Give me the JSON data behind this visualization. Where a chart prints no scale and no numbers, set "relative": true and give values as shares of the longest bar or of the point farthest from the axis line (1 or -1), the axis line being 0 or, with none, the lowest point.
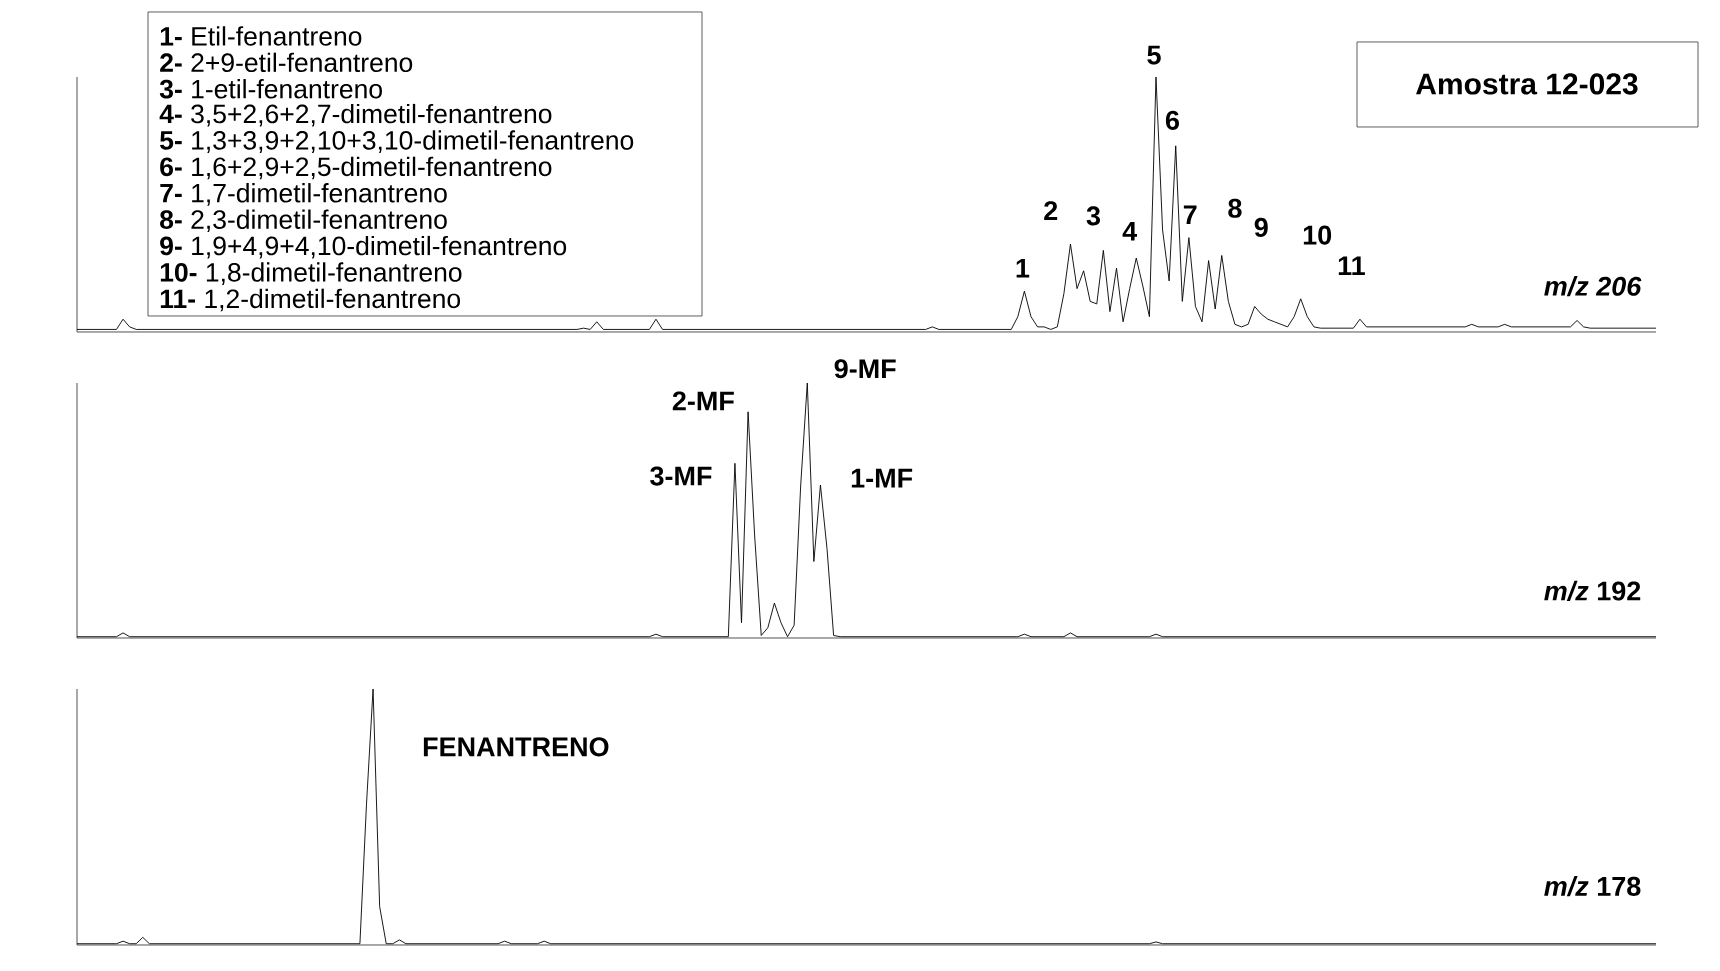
{
  "chart_data": [
    {
      "type": "line",
      "title": "Amostra 12-023",
      "relative": true,
      "annotations": [
        "**1-** Etil-fenantreno",
        "**2-** 2+9-etil-fenantreno",
        "**3-** 1-etil-fenantreno",
        "**4-** 3,5+2,6+2,7-dimetil-fenantreno",
        "**5-** 1,3+3,9+2,10+3,10-dimetil-fenantreno",
        "**6-** 1,6+2,9+2,5-dimetil-fenantreno",
        "**7-** 1,7-dimetil-fenantreno",
        "**8-** 2,3-dimetil-fenantreno",
        "**9-** 1,9+4,9+4,10-dimetil-fenantreno",
        "**10-** 1,8-dimetil-fenantreno",
        "**11-** 1,2-dimetil-fenantreno",
        "1",
        "2",
        "3",
        "4",
        "5",
        "6",
        "7",
        "8",
        "9",
        "10",
        "11"
      ],
      "categories": [
        null,
        null,
        null,
        null,
        null,
        null,
        null,
        null,
        null,
        null,
        null,
        null,
        null,
        null,
        null,
        null,
        null,
        null,
        null,
        null,
        null,
        null,
        null,
        null,
        null,
        null,
        null,
        null,
        null,
        null,
        null,
        null,
        null,
        null,
        null,
        null,
        null,
        null,
        null,
        null,
        null,
        null,
        null,
        null,
        null,
        null,
        null,
        null,
        null,
        null,
        null,
        null,
        null,
        null,
        null,
        null,
        null,
        null,
        null,
        null,
        null,
        null,
        null,
        null,
        null,
        null,
        null,
        null,
        null,
        null,
        null,
        null,
        null,
        null,
        null,
        null,
        null,
        null,
        null,
        null,
        null,
        null,
        null,
        null,
        null,
        null,
        null,
        null,
        null,
        null,
        null,
        null,
        null,
        null,
        null,
        null,
        null,
        null,
        null,
        null,
        null,
        null,
        null,
        null,
        null,
        null,
        null,
        null,
        null,
        null,
        null,
        null,
        null,
        null,
        null,
        null,
        null,
        null,
        null,
        null,
        null,
        null,
        null,
        null,
        null,
        null,
        null,
        null,
        null,
        null,
        null,
        null,
        null,
        null,
        null,
        null,
        null,
        null,
        null,
        null,
        null,
        null,
        null,
        null,
        null,
        null,
        null,
        null,
        null,
        null,
        null,
        null,
        null,
        null,
        null,
        null,
        null,
        null,
        null,
        null,
        null,
        null,
        null,
        null,
        null,
        null,
        null,
        null,
        null,
        null,
        null,
        null,
        null,
        null,
        null,
        null,
        null,
        null,
        null,
        null,
        null,
        null,
        null,
        null,
        null,
        null,
        null,
        null,
        null,
        null,
        null,
        null,
        null,
        null,
        null,
        null,
        null,
        null,
        null,
        null,
        null,
        null,
        null,
        null,
        null,
        null,
        null,
        null,
        null,
        null,
        null,
        null,
        null,
        null,
        null,
        null,
        null,
        null,
        null,
        null,
        null,
        null,
        null,
        null,
        null,
        null,
        null,
        null,
        null,
        null,
        null,
        null,
        null,
        null,
        null,
        null,
        null,
        null,
        null,
        null,
        null
      ],
      "series": [
        {
          "name": "m/z 206",
          "color": "#000000",
          "values": [
            0.01,
            0.01,
            0.01,
            0.01,
            0.01,
            0.01,
            0.01,
            0.05,
            0.02,
            0.01,
            0.01,
            0.01,
            0.01,
            0.01,
            0.01,
            0.01,
            0.01,
            0.01,
            0.01,
            0.01,
            0.01,
            0.01,
            0.01,
            0.01,
            0.01,
            0.01,
            0.01,
            0.01,
            0.01,
            0.01,
            0.01,
            0.01,
            0.01,
            0.01,
            0.01,
            0.01,
            0.01,
            0.01,
            0.01,
            0.01,
            0.01,
            0.01,
            0.01,
            0.01,
            0.01,
            0.01,
            0.01,
            0.01,
            0.01,
            0.01,
            0.01,
            0.01,
            0.01,
            0.01,
            0.01,
            0.01,
            0.01,
            0.01,
            0.01,
            0.01,
            0.01,
            0.01,
            0.01,
            0.01,
            0.01,
            0.01,
            0.01,
            0.01,
            0.01,
            0.01,
            0.01,
            0.01,
            0.01,
            0.01,
            0.01,
            0.01,
            0.01,
            0.015,
            0.01,
            0.04,
            0.01,
            0.01,
            0.01,
            0.01,
            0.01,
            0.01,
            0.01,
            0.01,
            0.05,
            0.01,
            0.01,
            0.01,
            0.01,
            0.01,
            0.01,
            0.01,
            0.01,
            0.01,
            0.01,
            0.01,
            0.01,
            0.01,
            0.01,
            0.01,
            0.01,
            0.01,
            0.01,
            0.01,
            0.01,
            0.01,
            0.01,
            0.01,
            0.01,
            0.01,
            0.01,
            0.01,
            0.01,
            0.01,
            0.01,
            0.01,
            0.01,
            0.01,
            0.01,
            0.01,
            0.01,
            0.01,
            0.01,
            0.01,
            0.01,
            0.01,
            0.02,
            0.01,
            0.01,
            0.01,
            0.01,
            0.01,
            0.01,
            0.01,
            0.01,
            0.01,
            0.01,
            0.01,
            0.01,
            0.06,
            0.16,
            0.06,
            0.02,
            0.02,
            0.01,
            0.02,
            0.15,
            0.345,
            0.17,
            0.24,
            0.12,
            0.11,
            0.32,
            0.08,
            0.25,
            0.04,
            0.17,
            0.29,
            0.18,
            0.06,
            1.0,
            0.4,
            0.2,
            0.73,
            0.12,
            0.37,
            0.1,
            0.04,
            0.28,
            0.09,
            0.3,
            0.12,
            0.03,
            0.02,
            0.03,
            0.1,
            0.07,
            0.05,
            0.04,
            0.03,
            0.02,
            0.06,
            0.13,
            0.06,
            0.02,
            0.015,
            0.015,
            0.015,
            0.015,
            0.015,
            0.015,
            0.05,
            0.02,
            0.02,
            0.02,
            0.02,
            0.02,
            0.02,
            0.02,
            0.02,
            0.02,
            0.02,
            0.02,
            0.02,
            0.02,
            0.02,
            0.02,
            0.02,
            0.03,
            0.02,
            0.02,
            0.02,
            0.02,
            0.03,
            0.02,
            0.02,
            0.02,
            0.02,
            0.02,
            0.02,
            0.02,
            0.02,
            0.02,
            0.02,
            0.045,
            0.02,
            0.015,
            0.015,
            0.015,
            0.015,
            0.015,
            0.015,
            0.015,
            0.015,
            0.015,
            0.015,
            0.015
          ]
        }
      ]
    },
    {
      "type": "line",
      "relative": true,
      "annotations": [
        "3-MF",
        "2-MF",
        "9-MF",
        "1-MF"
      ],
      "categories": [
        null,
        null,
        null,
        null,
        null,
        null,
        null,
        null,
        null,
        null,
        null,
        null,
        null,
        null,
        null,
        null,
        null,
        null,
        null,
        null,
        null,
        null,
        null,
        null,
        null,
        null,
        null,
        null,
        null,
        null,
        null,
        null,
        null,
        null,
        null,
        null,
        null,
        null,
        null,
        null,
        null,
        null,
        null,
        null,
        null,
        null,
        null,
        null,
        null,
        null,
        null,
        null,
        null,
        null,
        null,
        null,
        null,
        null,
        null,
        null,
        null,
        null,
        null,
        null,
        null,
        null,
        null,
        null,
        null,
        null,
        null,
        null,
        null,
        null,
        null,
        null,
        null,
        null,
        null,
        null,
        null,
        null,
        null,
        null,
        null,
        null,
        null,
        null,
        null,
        null,
        null,
        null,
        null,
        null,
        null,
        null,
        null,
        null,
        null,
        null,
        null,
        null,
        null,
        null,
        null,
        null,
        null,
        null,
        null,
        null,
        null,
        null,
        null,
        null,
        null,
        null,
        null,
        null,
        null,
        null,
        null,
        null,
        null,
        null,
        null,
        null,
        null,
        null,
        null,
        null,
        null,
        null,
        null,
        null,
        null,
        null,
        null,
        null,
        null,
        null,
        null,
        null,
        null,
        null,
        null,
        null,
        null,
        null,
        null,
        null,
        null,
        null,
        null,
        null,
        null,
        null,
        null,
        null,
        null,
        null,
        null,
        null,
        null,
        null,
        null,
        null,
        null,
        null,
        null,
        null,
        null,
        null,
        null,
        null,
        null,
        null,
        null,
        null,
        null,
        null,
        null,
        null,
        null,
        null,
        null,
        null,
        null,
        null,
        null,
        null,
        null,
        null,
        null,
        null,
        null,
        null,
        null,
        null,
        null,
        null,
        null,
        null,
        null,
        null,
        null,
        null,
        null,
        null,
        null,
        null,
        null,
        null,
        null,
        null,
        null,
        null,
        null,
        null,
        null,
        null,
        null,
        null,
        null,
        null,
        null,
        null,
        null,
        null,
        null,
        null,
        null,
        null,
        null,
        null,
        null,
        null,
        null,
        null,
        null,
        null,
        null
      ],
      "series": [
        {
          "name": "*m/z* 192",
          "color": "#000000",
          "values": [
            0.005,
            0.005,
            0.005,
            0.005,
            0.005,
            0.005,
            0.005,
            0.02,
            0.005,
            0.005,
            0.005,
            0.005,
            0.005,
            0.005,
            0.005,
            0.005,
            0.005,
            0.005,
            0.005,
            0.005,
            0.005,
            0.005,
            0.005,
            0.005,
            0.005,
            0.005,
            0.005,
            0.005,
            0.005,
            0.005,
            0.005,
            0.005,
            0.005,
            0.005,
            0.005,
            0.005,
            0.005,
            0.005,
            0.005,
            0.005,
            0.005,
            0.005,
            0.005,
            0.005,
            0.005,
            0.005,
            0.005,
            0.005,
            0.005,
            0.005,
            0.005,
            0.005,
            0.005,
            0.005,
            0.005,
            0.005,
            0.005,
            0.005,
            0.005,
            0.005,
            0.005,
            0.005,
            0.005,
            0.005,
            0.005,
            0.005,
            0.005,
            0.005,
            0.005,
            0.005,
            0.005,
            0.005,
            0.005,
            0.005,
            0.005,
            0.005,
            0.005,
            0.005,
            0.005,
            0.005,
            0.005,
            0.005,
            0.005,
            0.005,
            0.005,
            0.005,
            0.005,
            0.005,
            0.015,
            0.005,
            0.005,
            0.005,
            0.005,
            0.005,
            0.005,
            0.005,
            0.005,
            0.005,
            0.005,
            0.005,
            0.685,
            0.06,
            0.887,
            0.4,
            0.01,
            0.04,
            0.137,
            0.06,
            0.005,
            0.05,
            0.6,
            1.0,
            0.3,
            0.6,
            0.35,
            0.01,
            0.005,
            0.005,
            0.005,
            0.005,
            0.005,
            0.005,
            0.005,
            0.005,
            0.005,
            0.005,
            0.005,
            0.005,
            0.005,
            0.005,
            0.005,
            0.005,
            0.005,
            0.005,
            0.005,
            0.005,
            0.005,
            0.005,
            0.005,
            0.005,
            0.005,
            0.005,
            0.005,
            0.005,
            0.015,
            0.005,
            0.005,
            0.005,
            0.005,
            0.005,
            0.005,
            0.02,
            0.005,
            0.005,
            0.005,
            0.005,
            0.005,
            0.005,
            0.005,
            0.005,
            0.005,
            0.005,
            0.005,
            0.005,
            0.015,
            0.005,
            0.005,
            0.005,
            0.005,
            0.005,
            0.005,
            0.005,
            0.005,
            0.005,
            0.005,
            0.005,
            0.005,
            0.005,
            0.005,
            0.005,
            0.005,
            0.005,
            0.005,
            0.005,
            0.005,
            0.005,
            0.005,
            0.005,
            0.005,
            0.005,
            0.005,
            0.005,
            0.005,
            0.005,
            0.005,
            0.005,
            0.005,
            0.005,
            0.005,
            0.005,
            0.005,
            0.005,
            0.005,
            0.005,
            0.005,
            0.005,
            0.005,
            0.005,
            0.005,
            0.005,
            0.005,
            0.005,
            0.005,
            0.005,
            0.005,
            0.005,
            0.005,
            0.005,
            0.005,
            0.005,
            0.005,
            0.005,
            0.005,
            0.005,
            0.005,
            0.005,
            0.005,
            0.005,
            0.005,
            0.005,
            0.005,
            0.005,
            0.005,
            0.005,
            0.005,
            0.005,
            0.005,
            0.005,
            0.005,
            0.005,
            0.005
          ]
        }
      ]
    },
    {
      "type": "line",
      "relative": true,
      "annotations": [
        "FENANTRENO"
      ],
      "categories": [
        null,
        null,
        null,
        null,
        null,
        null,
        null,
        null,
        null,
        null,
        null,
        null,
        null,
        null,
        null,
        null,
        null,
        null,
        null,
        null,
        null,
        null,
        null,
        null,
        null,
        null,
        null,
        null,
        null,
        null,
        null,
        null,
        null,
        null,
        null,
        null,
        null,
        null,
        null,
        null,
        null,
        null,
        null,
        null,
        null,
        null,
        null,
        null,
        null,
        null,
        null,
        null,
        null,
        null,
        null,
        null,
        null,
        null,
        null,
        null,
        null,
        null,
        null,
        null,
        null,
        null,
        null,
        null,
        null,
        null,
        null,
        null,
        null,
        null,
        null,
        null,
        null,
        null,
        null,
        null,
        null,
        null,
        null,
        null,
        null,
        null,
        null,
        null,
        null,
        null,
        null,
        null,
        null,
        null,
        null,
        null,
        null,
        null,
        null,
        null,
        null,
        null,
        null,
        null,
        null,
        null,
        null,
        null,
        null,
        null,
        null,
        null,
        null,
        null,
        null,
        null,
        null,
        null,
        null,
        null,
        null,
        null,
        null,
        null,
        null,
        null,
        null,
        null,
        null,
        null,
        null,
        null,
        null,
        null,
        null,
        null,
        null,
        null,
        null,
        null,
        null,
        null,
        null,
        null,
        null,
        null,
        null,
        null,
        null,
        null,
        null,
        null,
        null,
        null,
        null,
        null,
        null,
        null,
        null,
        null,
        null,
        null,
        null,
        null,
        null,
        null,
        null,
        null,
        null,
        null,
        null,
        null,
        null,
        null,
        null,
        null,
        null,
        null,
        null,
        null,
        null,
        null,
        null,
        null,
        null,
        null,
        null,
        null,
        null,
        null,
        null,
        null,
        null,
        null,
        null,
        null,
        null,
        null,
        null,
        null,
        null,
        null,
        null,
        null,
        null,
        null,
        null,
        null,
        null,
        null,
        null,
        null,
        null,
        null,
        null,
        null,
        null,
        null,
        null,
        null,
        null,
        null,
        null,
        null,
        null,
        null,
        null,
        null,
        null,
        null,
        null,
        null,
        null,
        null,
        null,
        null,
        null,
        null,
        null,
        null,
        null
      ],
      "series": [
        {
          "name": "*m/z* 178",
          "color": "#000000",
          "values": [
            0.005,
            0.005,
            0.005,
            0.005,
            0.005,
            0.005,
            0.005,
            0.015,
            0.005,
            0.005,
            0.03,
            0.005,
            0.005,
            0.005,
            0.005,
            0.005,
            0.005,
            0.005,
            0.005,
            0.005,
            0.005,
            0.005,
            0.005,
            0.005,
            0.005,
            0.005,
            0.005,
            0.005,
            0.005,
            0.005,
            0.005,
            0.005,
            0.005,
            0.005,
            0.005,
            0.005,
            0.005,
            0.005,
            0.005,
            0.005,
            0.005,
            0.005,
            0.005,
            0.005,
            0.55,
            1.0,
            0.15,
            0.005,
            0.005,
            0.02,
            0.005,
            0.005,
            0.005,
            0.005,
            0.005,
            0.005,
            0.005,
            0.005,
            0.005,
            0.005,
            0.005,
            0.005,
            0.005,
            0.005,
            0.005,
            0.015,
            0.005,
            0.005,
            0.005,
            0.005,
            0.005,
            0.015,
            0.005,
            0.005,
            0.005,
            0.005,
            0.005,
            0.005,
            0.005,
            0.005,
            0.005,
            0.005,
            0.005,
            0.005,
            0.005,
            0.005,
            0.005,
            0.005,
            0.005,
            0.005,
            0.005,
            0.005,
            0.005,
            0.005,
            0.005,
            0.005,
            0.005,
            0.005,
            0.005,
            0.005,
            0.005,
            0.005,
            0.005,
            0.005,
            0.005,
            0.005,
            0.005,
            0.005,
            0.005,
            0.005,
            0.005,
            0.005,
            0.005,
            0.005,
            0.005,
            0.005,
            0.005,
            0.005,
            0.005,
            0.005,
            0.005,
            0.005,
            0.005,
            0.005,
            0.005,
            0.005,
            0.005,
            0.005,
            0.005,
            0.005,
            0.005,
            0.005,
            0.005,
            0.005,
            0.005,
            0.005,
            0.005,
            0.005,
            0.005,
            0.005,
            0.005,
            0.005,
            0.005,
            0.005,
            0.005,
            0.005,
            0.005,
            0.005,
            0.005,
            0.005,
            0.005,
            0.005,
            0.005,
            0.005,
            0.005,
            0.005,
            0.005,
            0.005,
            0.005,
            0.005,
            0.005,
            0.005,
            0.005,
            0.005,
            0.012,
            0.005,
            0.005,
            0.005,
            0.005,
            0.005,
            0.005,
            0.005,
            0.005,
            0.005,
            0.005,
            0.005,
            0.005,
            0.005,
            0.005,
            0.005,
            0.005,
            0.005,
            0.005,
            0.005,
            0.005,
            0.005,
            0.005,
            0.005,
            0.005,
            0.005,
            0.005,
            0.005,
            0.005,
            0.005,
            0.005,
            0.005,
            0.005,
            0.005,
            0.005,
            0.005,
            0.005,
            0.005,
            0.005,
            0.005,
            0.005,
            0.005,
            0.005,
            0.005,
            0.005,
            0.005,
            0.005,
            0.005,
            0.005,
            0.005,
            0.005,
            0.005,
            0.005,
            0.005,
            0.005,
            0.005,
            0.005,
            0.005,
            0.005,
            0.005,
            0.005,
            0.005,
            0.005,
            0.005,
            0.005,
            0.005,
            0.005,
            0.005,
            0.005,
            0.005,
            0.005,
            0.005,
            0.005,
            0.005,
            0.005,
            0.005,
            0.005
          ]
        }
      ]
    }
  ]
}
